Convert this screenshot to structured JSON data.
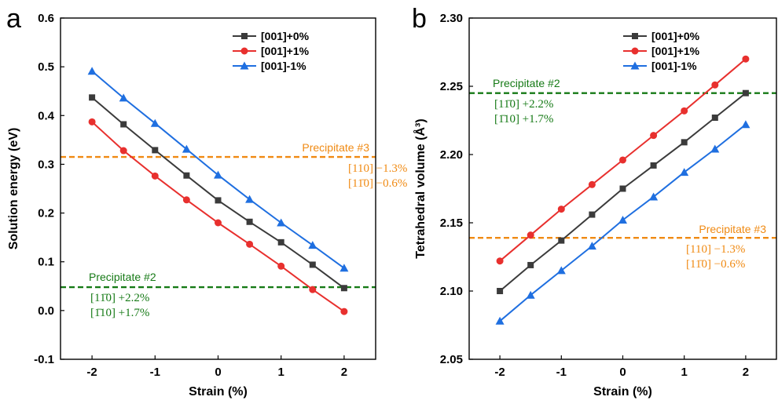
{
  "chart_data": [
    {
      "type": "line",
      "panel_label": "a",
      "xlabel": "Strain (%)",
      "ylabel": "Solution energy (eV)",
      "xlim": [
        -2.5,
        2.5
      ],
      "ylim": [
        -0.1,
        0.6
      ],
      "xticks": [
        -2,
        -1,
        0,
        1,
        2
      ],
      "yticks": [
        -0.1,
        0.0,
        0.1,
        0.2,
        0.3,
        0.4,
        0.5,
        0.6
      ],
      "xtick_labels": [
        "-2",
        "-1",
        "0",
        "1",
        "2"
      ],
      "ytick_labels": [
        "-0.1",
        "0.0",
        "0.1",
        "0.2",
        "0.3",
        "0.4",
        "0.5",
        "0.6"
      ],
      "legend_position": "top-right",
      "x": [
        -2,
        -1.5,
        -1,
        -0.5,
        0,
        0.5,
        1,
        1.5,
        2
      ],
      "series": [
        {
          "name": "[001]+0%",
          "color": "#3b3b3b",
          "marker": "square",
          "values": [
            0.437,
            0.382,
            0.329,
            0.277,
            0.226,
            0.182,
            0.14,
            0.094,
            0.046
          ]
        },
        {
          "name": "[001]+1%",
          "color": "#e8302e",
          "marker": "circle",
          "values": [
            0.387,
            0.328,
            0.276,
            0.227,
            0.18,
            0.136,
            0.091,
            0.043,
            -0.002
          ]
        },
        {
          "name": "[001]-1%",
          "color": "#1f6fe0",
          "marker": "triangle",
          "values": [
            0.491,
            0.436,
            0.384,
            0.331,
            0.278,
            0.228,
            0.18,
            0.134,
            0.087
          ]
        }
      ],
      "reference_lines": [
        {
          "y": 0.315,
          "color": "#f08a13",
          "title": "Precipitate  #3",
          "lines": [
            "[110] −1.3%",
            "[11̄0] −0.6%"
          ],
          "text_anchor": "end"
        },
        {
          "y": 0.048,
          "color": "#167a16",
          "title": "Precipitate  #2",
          "lines": [
            "[11̄0] +2.2%",
            "[1̄10] +1.7%"
          ],
          "text_anchor": "start"
        }
      ]
    },
    {
      "type": "line",
      "panel_label": "b",
      "xlabel": "Strain (%)",
      "ylabel": "Tetrahedral volume (Å³)",
      "xlim": [
        -2.5,
        2.5
      ],
      "ylim": [
        2.05,
        2.3
      ],
      "xticks": [
        -2,
        -1,
        0,
        1,
        2
      ],
      "yticks": [
        2.05,
        2.1,
        2.15,
        2.2,
        2.25,
        2.3
      ],
      "xtick_labels": [
        "-2",
        "-1",
        "0",
        "1",
        "2"
      ],
      "ytick_labels": [
        "2.05",
        "2.10",
        "2.15",
        "2.20",
        "2.25",
        "2.30"
      ],
      "legend_position": "top-center",
      "x": [
        -2,
        -1.5,
        -1,
        -0.5,
        0,
        0.5,
        1,
        1.5,
        2
      ],
      "series": [
        {
          "name": "[001]+0%",
          "color": "#3b3b3b",
          "marker": "square",
          "values": [
            2.1,
            2.119,
            2.137,
            2.156,
            2.175,
            2.192,
            2.209,
            2.227,
            2.245
          ]
        },
        {
          "name": "[001]+1%",
          "color": "#e8302e",
          "marker": "circle",
          "values": [
            2.122,
            2.141,
            2.16,
            2.178,
            2.196,
            2.214,
            2.232,
            2.251,
            2.27
          ]
        },
        {
          "name": "[001]-1%",
          "color": "#1f6fe0",
          "marker": "triangle",
          "values": [
            2.078,
            2.097,
            2.115,
            2.133,
            2.152,
            2.169,
            2.187,
            2.204,
            2.222
          ]
        }
      ],
      "reference_lines": [
        {
          "y": 2.245,
          "color": "#167a16",
          "title": "Precipitate  #2",
          "lines": [
            "[11̄0] +2.2%",
            "[1̄10] +1.7%"
          ],
          "text_anchor": "start"
        },
        {
          "y": 2.139,
          "color": "#f08a13",
          "title": "Precipitate  #3",
          "lines": [
            "[110] −1.3%",
            "[11̄0] −0.6%"
          ],
          "text_anchor": "end"
        }
      ]
    }
  ]
}
